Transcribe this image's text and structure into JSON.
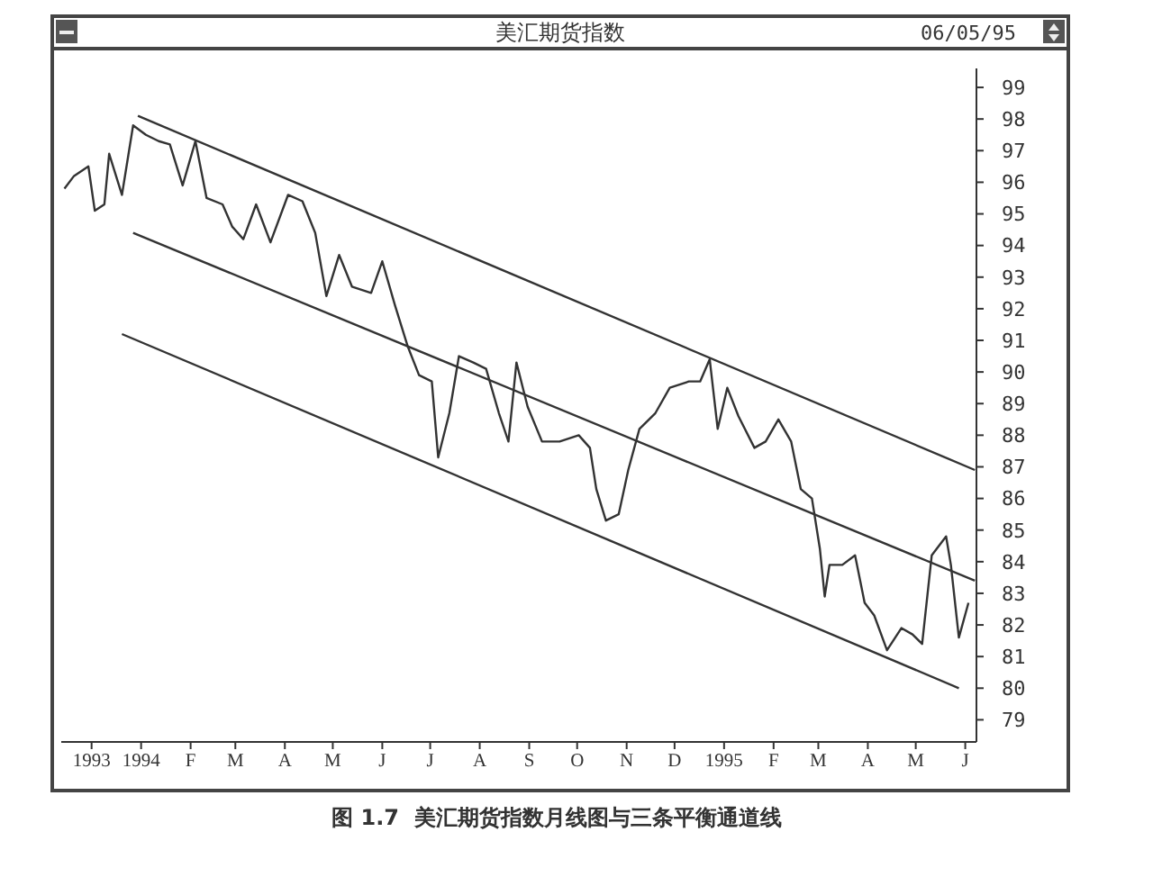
{
  "chart_data": {
    "type": "line",
    "title": "美汇期货指数",
    "subtitle": "06/05/95",
    "annotations": [
      "图 1.7  美汇期货指数月线图与三条平衡通道线"
    ],
    "xlim": [
      "1993-11-12",
      "1995-06-08"
    ],
    "xticks": [
      {
        "value": "1993-12-01",
        "label": "1993"
      },
      {
        "value": "1994-01-01",
        "label": "1994"
      },
      {
        "value": "1994-02-01",
        "label": "F"
      },
      {
        "value": "1994-03-01",
        "label": "M"
      },
      {
        "value": "1994-04-01",
        "label": "A"
      },
      {
        "value": "1994-05-01",
        "label": "M"
      },
      {
        "value": "1994-06-01",
        "label": "J"
      },
      {
        "value": "1994-07-01",
        "label": "J"
      },
      {
        "value": "1994-08-01",
        "label": "A"
      },
      {
        "value": "1994-09-01",
        "label": "S"
      },
      {
        "value": "1994-10-01",
        "label": "O"
      },
      {
        "value": "1994-11-01",
        "label": "N"
      },
      {
        "value": "1994-12-01",
        "label": "D"
      },
      {
        "value": "1995-01-01",
        "label": "1995"
      },
      {
        "value": "1995-02-01",
        "label": "F"
      },
      {
        "value": "1995-03-01",
        "label": "M"
      },
      {
        "value": "1995-04-01",
        "label": "A"
      },
      {
        "value": "1995-05-01",
        "label": "M"
      },
      {
        "value": "1995-06-01",
        "label": "J"
      }
    ],
    "ylim": [
      78.3,
      99.6
    ],
    "yticks": [
      79,
      80,
      81,
      82,
      83,
      84,
      85,
      86,
      87,
      88,
      89,
      90,
      91,
      92,
      93,
      94,
      95,
      96,
      97,
      98,
      99
    ],
    "grid": false,
    "marker": "none",
    "line_style": "solid",
    "series": [
      {
        "color": "#333333",
        "x": [
          "1993-11-14",
          "1993-11-20",
          "1993-11-29",
          "1993-12-03",
          "1993-12-09",
          "1993-12-12",
          "1993-12-20",
          "1993-12-27",
          "1994-01-04",
          "1994-01-12",
          "1994-01-19",
          "1994-01-27",
          "1994-02-04",
          "1994-02-11",
          "1994-02-21",
          "1994-02-27",
          "1994-03-06",
          "1994-03-14",
          "1994-03-23",
          "1994-04-03",
          "1994-04-12",
          "1994-04-20",
          "1994-04-27",
          "1994-05-05",
          "1994-05-13",
          "1994-05-25",
          "1994-06-01",
          "1994-06-09",
          "1994-06-17",
          "1994-06-24",
          "1994-07-02",
          "1994-07-06",
          "1994-07-13",
          "1994-07-19",
          "1994-07-28",
          "1994-08-05",
          "1994-08-13",
          "1994-08-19",
          "1994-08-24",
          "1994-08-31",
          "1994-09-09",
          "1994-09-20",
          "1994-10-02",
          "1994-10-09",
          "1994-10-13",
          "1994-10-19",
          "1994-10-27",
          "1994-11-02",
          "1994-11-09",
          "1994-11-19",
          "1994-11-28",
          "1994-12-10",
          "1994-12-17",
          "1994-12-23",
          "1994-12-28",
          "1995-01-03",
          "1995-01-10",
          "1995-01-20",
          "1995-01-27",
          "1995-02-04",
          "1995-02-12",
          "1995-02-18",
          "1995-02-25",
          "1995-03-02",
          "1995-03-05",
          "1995-03-08",
          "1995-03-16",
          "1995-03-24",
          "1995-03-30",
          "1995-04-05",
          "1995-04-13",
          "1995-04-22",
          "1995-04-29",
          "1995-05-05",
          "1995-05-11",
          "1995-05-20",
          "1995-05-23",
          "1995-05-28",
          "1995-06-03"
        ],
        "values": [
          95.8,
          96.2,
          96.5,
          95.1,
          95.3,
          96.9,
          95.6,
          97.8,
          97.5,
          97.3,
          97.2,
          95.9,
          97.3,
          95.5,
          95.3,
          94.6,
          94.2,
          95.3,
          94.1,
          95.6,
          95.4,
          94.4,
          92.4,
          93.7,
          92.7,
          92.5,
          93.5,
          92.1,
          90.8,
          89.9,
          89.7,
          87.3,
          88.7,
          90.5,
          90.3,
          90.1,
          88.7,
          87.8,
          90.3,
          88.9,
          87.8,
          87.8,
          88.0,
          87.6,
          86.3,
          85.3,
          85.5,
          86.9,
          88.2,
          88.7,
          89.5,
          89.7,
          89.7,
          90.4,
          88.2,
          89.5,
          88.6,
          87.6,
          87.8,
          88.5,
          87.8,
          86.3,
          86.0,
          84.4,
          82.9,
          83.9,
          83.9,
          84.2,
          82.7,
          82.3,
          81.2,
          81.9,
          81.7,
          81.4,
          84.2,
          84.8,
          83.9,
          81.6,
          82.7
        ]
      },
      {
        "color": "#333333",
        "x": [
          "1993-12-30",
          "1995-06-07"
        ],
        "values": [
          98.1,
          86.9
        ]
      },
      {
        "color": "#333333",
        "x": [
          "1993-12-27",
          "1995-06-07"
        ],
        "values": [
          94.4,
          83.4
        ]
      },
      {
        "color": "#333333",
        "x": [
          "1993-12-20",
          "1995-05-28"
        ],
        "values": [
          91.2,
          80.0
        ]
      }
    ]
  }
}
